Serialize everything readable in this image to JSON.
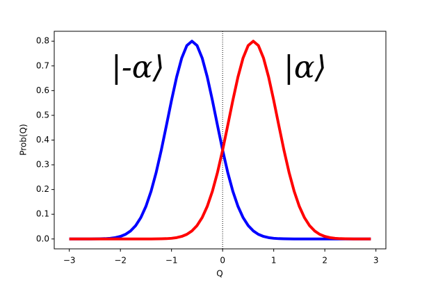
{
  "chart_data": {
    "type": "line",
    "x_label": "Q",
    "y_label": "Prob(Q)",
    "annotations": [
      "|-α⟩",
      "|α⟩"
    ],
    "vline": 0,
    "x": [
      -3.0,
      -2.9,
      -2.8,
      -2.7,
      -2.6,
      -2.5,
      -2.4,
      -2.3,
      -2.2,
      -2.1,
      -2.0,
      -1.9,
      -1.8,
      -1.7,
      -1.6,
      -1.5,
      -1.4,
      -1.3,
      -1.2,
      -1.1,
      -1.0,
      -0.9,
      -0.8,
      -0.7,
      -0.6,
      -0.5,
      -0.4,
      -0.3,
      -0.2,
      -0.1,
      0,
      0.1,
      0.2,
      0.3,
      0.4,
      0.5,
      0.6,
      0.7,
      0.8,
      0.9,
      1.0,
      1.1,
      1.2,
      1.3,
      1.4,
      1.5,
      1.6,
      1.7,
      1.8,
      1.9,
      2.0,
      2.1,
      2.2,
      2.3,
      2.4,
      2.5,
      2.6,
      2.7,
      2.8,
      2.9
    ],
    "series": [
      {
        "color": "#0000ff",
        "values": [
          0,
          0,
          0,
          0,
          0.0001,
          0.0003,
          0.0006,
          0.0013,
          0.0027,
          0.0054,
          0.0103,
          0.0187,
          0.0326,
          0.0543,
          0.0867,
          0.1322,
          0.193,
          0.2693,
          0.3595,
          0.459,
          0.5606,
          0.655,
          0.7319,
          0.7824,
          0.8,
          0.7824,
          0.7319,
          0.655,
          0.5606,
          0.459,
          0.3595,
          0.2693,
          0.193,
          0.1322,
          0.0867,
          0.0543,
          0.0326,
          0.0187,
          0.0103,
          0.0054,
          0.0027,
          0.0013,
          0.0006,
          0.0003,
          0.0001,
          0,
          0,
          0,
          0,
          0,
          0,
          0,
          0,
          0,
          0,
          0,
          0,
          0,
          0,
          0
        ]
      },
      {
        "color": "#ff0000",
        "values": [
          0,
          0,
          0,
          0,
          0,
          0,
          0,
          0,
          0,
          0,
          0,
          0,
          0,
          0,
          0,
          0,
          0.0001,
          0.0003,
          0.0006,
          0.0013,
          0.0027,
          0.0054,
          0.0103,
          0.0187,
          0.0326,
          0.0543,
          0.0867,
          0.1322,
          0.193,
          0.2693,
          0.3595,
          0.459,
          0.5606,
          0.655,
          0.7319,
          0.7824,
          0.8,
          0.7824,
          0.7319,
          0.655,
          0.5606,
          0.459,
          0.3595,
          0.2693,
          0.193,
          0.1322,
          0.0867,
          0.0543,
          0.0326,
          0.0187,
          0.0103,
          0.0054,
          0.0027,
          0.0013,
          0.0006,
          0.0003,
          0.0001,
          0,
          0,
          0
        ]
      }
    ],
    "xlim": [
      -3.295,
      3.195
    ],
    "ylim": [
      -0.04,
      0.84
    ],
    "xticks": [
      {
        "value": -3,
        "label": "−3"
      },
      {
        "value": -2,
        "label": "−2"
      },
      {
        "value": -1,
        "label": "−1"
      },
      0,
      1,
      2,
      3
    ],
    "yticks": [
      {
        "value": 0,
        "label": "0.0"
      },
      0.1,
      0.2,
      0.3,
      0.4,
      0.5,
      0.6,
      0.7,
      0.8
    ],
    "grid": false
  }
}
